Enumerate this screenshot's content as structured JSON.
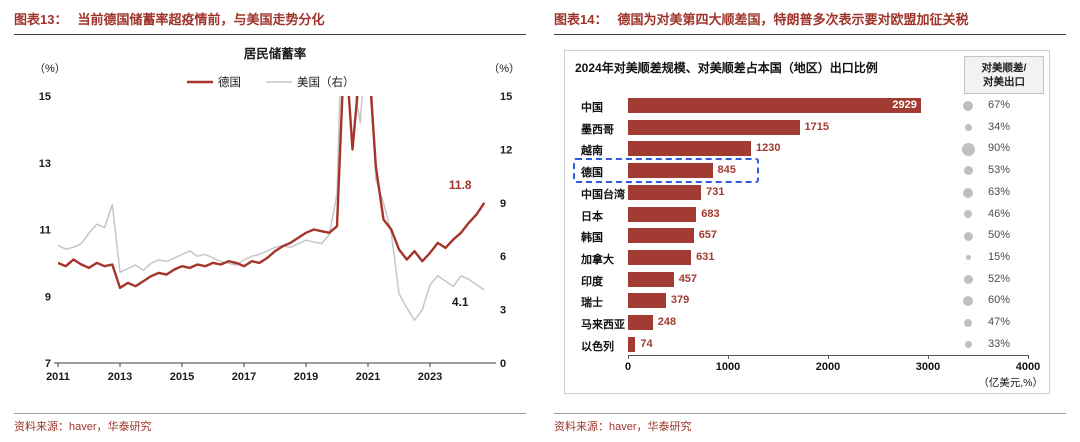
{
  "colors": {
    "accent_red": "#9E342B",
    "bar_red": "#A23B31",
    "line_red": "#A5342A",
    "line_gray": "#C6C6C6",
    "dot_gray": "#BFBFBF",
    "highlight_blue": "#2E5BE0",
    "text_dark": "#1A1A1A"
  },
  "left_panel": {
    "figure_label": "图表13：",
    "figure_title": "当前德国储蓄率超疫情前，与美国走势分化",
    "source": "资料来源：haver，华泰研究"
  },
  "right_panel": {
    "figure_label": "图表14：",
    "figure_title": "德国为对美第四大顺差国，特朗普多次表示要对欧盟加征关税",
    "legend_box_line1": "对美顺差/",
    "legend_box_line2": "对美出口",
    "unit_label": "（亿美元,%）",
    "source": "资料来源：haver，华泰研究"
  },
  "chart_data": [
    {
      "type": "line",
      "title": "居民储蓄率",
      "left_axis_label": "（%）",
      "right_axis_label": "（%）",
      "left_ylim": [
        7,
        15
      ],
      "left_yticks": [
        7,
        9,
        11,
        13,
        15
      ],
      "right_ylim": [
        0,
        15
      ],
      "right_yticks": [
        0,
        3,
        6,
        9,
        12,
        15
      ],
      "x_ticks": [
        2011,
        2013,
        2015,
        2017,
        2019,
        2021,
        2023
      ],
      "x_range": [
        2011,
        2025
      ],
      "grid": false,
      "legend_position": "top-center",
      "x": [
        2011,
        2011.25,
        2011.5,
        2011.75,
        2012,
        2012.25,
        2012.5,
        2012.75,
        2013,
        2013.25,
        2013.5,
        2013.75,
        2014,
        2014.25,
        2014.5,
        2014.75,
        2015,
        2015.25,
        2015.5,
        2015.75,
        2016,
        2016.25,
        2016.5,
        2016.75,
        2017,
        2017.25,
        2017.5,
        2017.75,
        2018,
        2018.25,
        2018.5,
        2018.75,
        2019,
        2019.25,
        2019.5,
        2019.75,
        2020,
        2020.25,
        2020.5,
        2020.75,
        2021,
        2021.25,
        2021.5,
        2021.75,
        2022,
        2022.25,
        2022.5,
        2022.75,
        2023,
        2023.25,
        2023.5,
        2023.75,
        2024,
        2024.25,
        2024.5,
        2024.75
      ],
      "series": [
        {
          "id": "germany",
          "name": "德国",
          "axis": "left",
          "color": "#A5342A",
          "width": 2.4,
          "end_label": "11.8",
          "end_label_color": "#A5342A",
          "values": [
            10.0,
            9.9,
            10.1,
            9.95,
            9.85,
            10.0,
            9.9,
            9.95,
            9.25,
            9.4,
            9.3,
            9.45,
            9.6,
            9.7,
            9.65,
            9.8,
            9.9,
            9.85,
            9.95,
            9.9,
            10.0,
            9.95,
            10.05,
            10.0,
            9.9,
            10.05,
            10.0,
            10.15,
            10.35,
            10.5,
            10.6,
            10.75,
            10.9,
            11.0,
            10.95,
            10.9,
            11.1,
            16.8,
            13.4,
            16.0,
            16.4,
            12.9,
            11.3,
            11.0,
            10.4,
            10.1,
            10.35,
            10.05,
            10.3,
            10.6,
            10.45,
            10.7,
            10.9,
            11.2,
            11.45,
            11.8
          ]
        },
        {
          "id": "us",
          "name": "美国（右）",
          "axis": "right",
          "color": "#C6C6C6",
          "width": 1.5,
          "end_label": "4.1",
          "end_label_color": "#1A1A1A",
          "values": [
            6.6,
            6.4,
            6.5,
            6.7,
            7.3,
            7.8,
            7.6,
            8.9,
            5.1,
            5.3,
            5.5,
            5.2,
            5.6,
            5.8,
            5.7,
            5.9,
            6.1,
            6.3,
            6.0,
            6.1,
            5.9,
            5.7,
            5.6,
            5.5,
            5.8,
            6.0,
            6.1,
            6.3,
            6.5,
            6.6,
            6.5,
            6.7,
            6.9,
            6.8,
            6.7,
            7.2,
            9.5,
            25.0,
            16.0,
            13.5,
            20.0,
            10.3,
            9.0,
            7.3,
            3.9,
            3.1,
            2.4,
            3.0,
            4.4,
            4.9,
            4.6,
            4.3,
            4.9,
            4.7,
            4.4,
            4.1
          ]
        }
      ]
    },
    {
      "type": "bar",
      "orientation": "horizontal",
      "title": "2024年对美顺差规模、对美顺差占本国（地区）出口比例",
      "categories": [
        "中国",
        "墨西哥",
        "越南",
        "德国",
        "中国台湾",
        "日本",
        "韩国",
        "加拿大",
        "印度",
        "瑞士",
        "马来西亚",
        "以色列"
      ],
      "values": [
        2929,
        1715,
        1230,
        845,
        731,
        683,
        657,
        631,
        457,
        379,
        248,
        74
      ],
      "share_of_exports": [
        "67%",
        "34%",
        "90%",
        "53%",
        "63%",
        "46%",
        "50%",
        "15%",
        "52%",
        "60%",
        "47%",
        "33%"
      ],
      "xlim": [
        0,
        4000
      ],
      "x_ticks": [
        0,
        1000,
        2000,
        3000,
        4000
      ],
      "unit_label": "（亿美元,%）",
      "highlighted_category": "德国",
      "grid": false
    }
  ]
}
